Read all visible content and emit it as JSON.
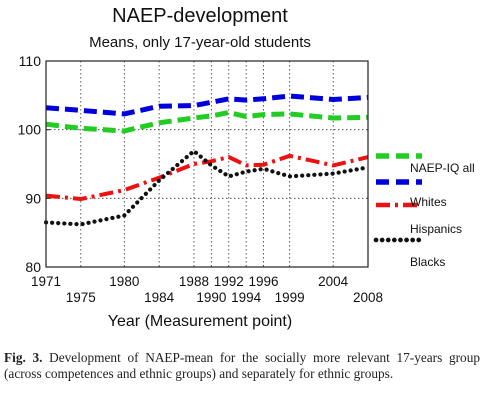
{
  "chart_data": {
    "type": "line",
    "title": "NAEP-development",
    "subtitle": "Means, only 17-year-old students",
    "xlabel": "Year (Measurement point)",
    "ylabel": "",
    "ylim": [
      80,
      110
    ],
    "yticks": [
      80,
      90,
      100,
      110
    ],
    "grid": true,
    "legend_position": "right",
    "x": [
      1971,
      1975,
      1980,
      1984,
      1988,
      1990,
      1992,
      1994,
      1996,
      1999,
      2004,
      2008
    ],
    "xtick_labels_top": [
      "1971",
      "1980",
      "1988",
      "1992",
      "1996",
      "2004"
    ],
    "xtick_labels_bottom": [
      "1975",
      "1984",
      "1990",
      "1994",
      "1999",
      "2008"
    ],
    "series": [
      {
        "name": "NAEP-IQ all",
        "color": "#0000dd",
        "dash": "dashed",
        "values": [
          103.2,
          102.8,
          102.3,
          103.4,
          103.5,
          104.0,
          104.5,
          104.3,
          104.5,
          104.9,
          104.4,
          104.7
        ]
      },
      {
        "name": "Whites",
        "color": "#ee1111",
        "dash": "dashdot",
        "values": [
          90.4,
          89.9,
          91.2,
          93.0,
          95.0,
          95.4,
          96.0,
          94.8,
          94.9,
          96.2,
          94.8,
          96.0
        ]
      },
      {
        "name": "Hispanics",
        "color": "#111111",
        "dash": "dotted",
        "values": [
          86.5,
          86.2,
          87.5,
          92.6,
          96.9,
          94.8,
          93.2,
          93.9,
          94.3,
          93.2,
          93.6,
          94.5
        ]
      },
      {
        "name": "Blacks",
        "color": "#22cc22",
        "dash": "dashed",
        "values": [
          100.8,
          100.2,
          99.8,
          101.0,
          101.7,
          102.0,
          102.5,
          101.9,
          102.2,
          102.3,
          101.7,
          101.8
        ]
      }
    ],
    "legend_items": [
      "NAEP-IQ all",
      "Whites",
      "Hispanics",
      "Blacks"
    ]
  },
  "caption": {
    "label": "Fig. 3.",
    "text": " Development of NAEP-mean for the socially more relevant 17-years group (across competences and ethnic groups) and separately for ethnic groups."
  }
}
